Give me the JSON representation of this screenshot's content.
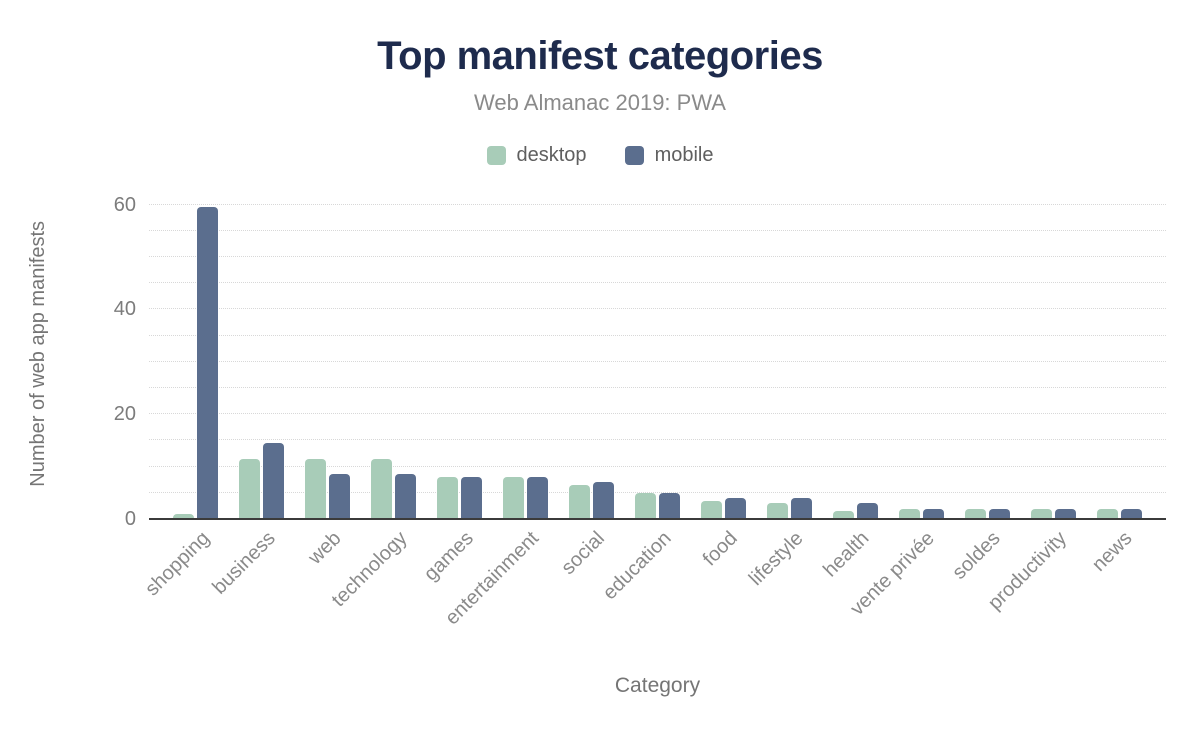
{
  "chart_data": {
    "type": "bar",
    "title": "Top manifest categories",
    "subtitle": "Web Almanac 2019: PWA",
    "xlabel": "Category",
    "ylabel": "Number of web app manifests",
    "categories": [
      "shopping",
      "business",
      "web",
      "technology",
      "games",
      "entertainment",
      "social",
      "education",
      "food",
      "lifestyle",
      "health",
      "vente privée",
      "soldes",
      "productivity",
      "news"
    ],
    "series": [
      {
        "name": "desktop",
        "color": "#a8ccb8",
        "values": [
          1,
          11.5,
          11.5,
          11.5,
          8,
          8,
          6.5,
          5,
          3.5,
          3,
          1.5,
          2,
          2,
          2,
          2
        ]
      },
      {
        "name": "mobile",
        "color": "#5b6e8e",
        "values": [
          59.5,
          14.5,
          8.5,
          8.5,
          8,
          8,
          7,
          5,
          4,
          4,
          3,
          2,
          2,
          2,
          2
        ]
      }
    ],
    "ylim": [
      0,
      63
    ],
    "yticks": [
      0,
      20,
      40,
      60
    ],
    "grid_step": 5,
    "grid": "on",
    "legend_position": "top"
  },
  "colors": {
    "title": "#1e2b4d",
    "subtitle_gray": "#8a8a8a",
    "axis_text": "#7c7c7c",
    "axis_line": "#3b3b3b",
    "gridline": "#d8d8d8",
    "desktop_green": "#a8ccb8",
    "mobile_blue": "#5b6e8e",
    "background": "#ffffff"
  }
}
